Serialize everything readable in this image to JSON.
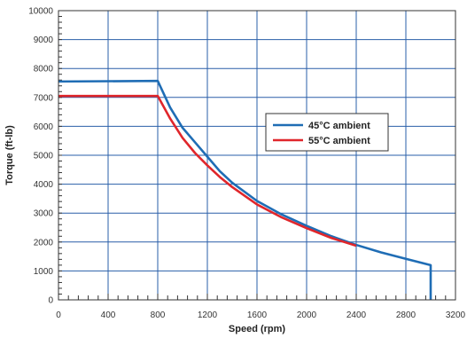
{
  "chart_data": {
    "type": "line",
    "xlabel": "Speed (rpm)",
    "ylabel": "Torque (ft-lb)",
    "xlim": [
      0,
      3200
    ],
    "ylim": [
      0,
      10000
    ],
    "x_ticks": [
      0,
      400,
      800,
      1200,
      1600,
      2000,
      2400,
      2800,
      3200
    ],
    "y_ticks": [
      0,
      1000,
      2000,
      3000,
      4000,
      5000,
      6000,
      7000,
      8000,
      9000,
      10000
    ],
    "grid": true,
    "legend_position": "center-right",
    "series": [
      {
        "name": "45°C  ambient",
        "color": "#1f6db5",
        "x": [
          0,
          800,
          900,
          1000,
          1100,
          1200,
          1300,
          1400,
          1600,
          1800,
          2000,
          2200,
          2400,
          2600,
          2800,
          3000,
          3000
        ],
        "y": [
          7550,
          7570,
          6650,
          5950,
          5450,
          4950,
          4450,
          4050,
          3420,
          2950,
          2560,
          2200,
          1900,
          1640,
          1420,
          1200,
          0
        ]
      },
      {
        "name": "55°C  ambient",
        "color": "#e0262b",
        "x": [
          0,
          800,
          900,
          1000,
          1100,
          1200,
          1300,
          1400,
          1600,
          1800,
          2000,
          2200,
          2400
        ],
        "y": [
          7050,
          7050,
          6270,
          5600,
          5080,
          4650,
          4250,
          3900,
          3300,
          2850,
          2480,
          2140,
          1870
        ]
      }
    ]
  }
}
